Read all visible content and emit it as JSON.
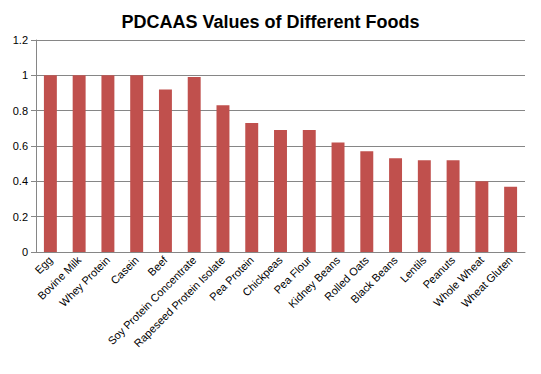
{
  "chart_data": {
    "type": "bar",
    "title": "PDCAAS Values of Different Foods",
    "categories": [
      "Egg",
      "Bovine Milk",
      "Whey Protein",
      "Casein",
      "Beef",
      "Soy Protein Concentrate",
      "Rapeseed Protein Isolate",
      "Pea Protein",
      "Chickpeas",
      "Pea Flour",
      "Kidney Beans",
      "Rolled Oats",
      "Black Beans",
      "Lentils",
      "Peanuts",
      "Whole Wheat",
      "Wheat Gluten"
    ],
    "values": [
      1,
      1,
      1,
      1,
      0.92,
      0.99,
      0.83,
      0.73,
      0.69,
      0.69,
      0.62,
      0.57,
      0.53,
      0.52,
      0.52,
      0.4,
      0.37
    ],
    "color": "#c0504d",
    "ylim": [
      0,
      1.2
    ],
    "yticks": [
      0,
      0.2,
      0.4,
      0.6,
      0.8,
      1,
      1.2
    ],
    "grid": true
  }
}
